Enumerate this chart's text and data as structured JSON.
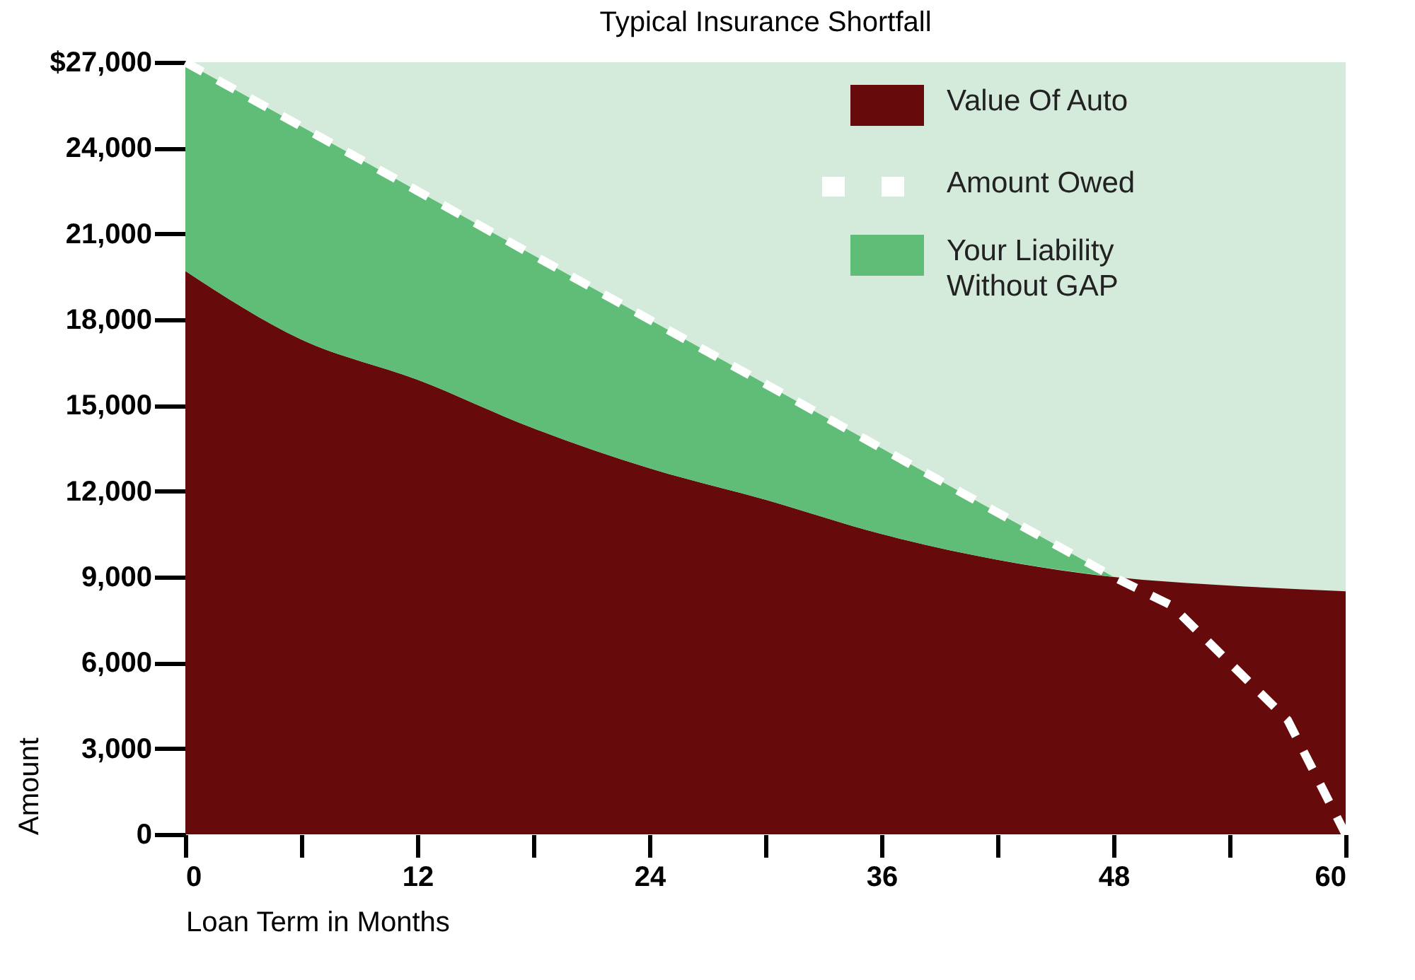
{
  "chart_data": {
    "type": "area",
    "title": "Typical Insurance Shortfall",
    "xlabel": "Loan Term in Months",
    "ylabel": "Amount",
    "stacked": true,
    "legend": "top right",
    "grid": false,
    "x": [
      0,
      6,
      12,
      18,
      24,
      30,
      36,
      42,
      48,
      54,
      60
    ],
    "xlim": [
      0,
      60
    ],
    "xticks": [
      0,
      {
        "value": 6,
        "label": null
      },
      12,
      {
        "value": 18,
        "label": null
      },
      24,
      {
        "value": 30,
        "label": null
      },
      36,
      {
        "value": 42,
        "label": null
      },
      48,
      {
        "value": 54,
        "label": null
      },
      60
    ],
    "ylim": [
      0,
      27000
    ],
    "yticks": [
      {
        "value": 0,
        "label": "0"
      },
      {
        "value": 3000,
        "label": "3,000"
      },
      {
        "value": 6000,
        "label": "6,000"
      },
      {
        "value": 9000,
        "label": "9,000"
      },
      {
        "value": 12000,
        "label": "12,000"
      },
      {
        "value": 15000,
        "label": "15,000"
      },
      {
        "value": 18000,
        "label": "18,000"
      },
      {
        "value": 21000,
        "label": "21,000"
      },
      {
        "value": 24000,
        "label": "24,000"
      },
      {
        "value": 27000,
        "label": "$27,000"
      }
    ],
    "series": [
      {
        "name": "Value Of Auto",
        "color": "#660a0c",
        "values": [
          19700,
          17300,
          15900,
          14200,
          12800,
          11700,
          10500,
          9600,
          9000,
          8700,
          8500
        ]
      },
      {
        "name": "Your Liability Without GAP",
        "color": "#60bd78",
        "values": [
          7300,
          7450,
          6600,
          6050,
          5200,
          4050,
          3000,
          1650,
          0,
          null,
          null
        ]
      },
      {
        "name": "Amount Owed",
        "type": "line",
        "color": "#ffffff",
        "line_style": "dashed",
        "x": [
          0,
          12,
          24,
          36,
          48,
          51,
          54,
          57,
          60
        ],
        "values": [
          27000,
          22500,
          18000,
          13500,
          9000,
          8000,
          6000,
          4000,
          0
        ]
      }
    ]
  }
}
